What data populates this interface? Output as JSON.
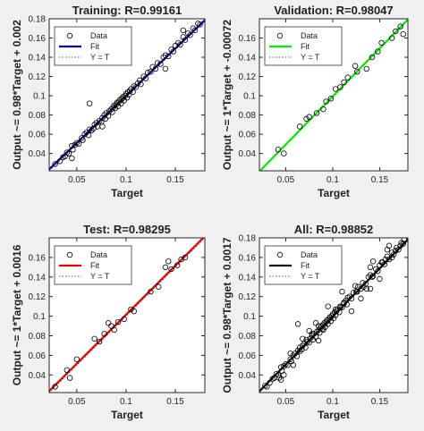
{
  "chart_data": [
    {
      "type": "scatter",
      "title": "Training: R=0.99161",
      "xlabel": "Target",
      "ylabel": "Output ~= 0.98*Target + 0.002",
      "xlim": [
        0.022,
        0.18
      ],
      "ylim": [
        0.022,
        0.18
      ],
      "xticks": [
        0.05,
        0.1,
        0.15
      ],
      "xtick_labels": [
        "0.05",
        "0.1",
        "0.15"
      ],
      "yticks": [
        0.04,
        0.06,
        0.08,
        0.1,
        0.12,
        0.14,
        0.16,
        0.18
      ],
      "ytick_labels": [
        "0.04",
        "0.06",
        "0.08",
        "0.1",
        "0.12",
        "0.14",
        "0.16",
        "0.18"
      ],
      "fit": {
        "slope": 0.98,
        "intercept": 0.002,
        "color": "#0000cc"
      },
      "legend": {
        "position": "top-left",
        "entries": [
          "Data",
          "Fit",
          "Y = T"
        ]
      },
      "grid": false,
      "points": [
        [
          0.028,
          0.029
        ],
        [
          0.033,
          0.032
        ],
        [
          0.036,
          0.036
        ],
        [
          0.038,
          0.037
        ],
        [
          0.04,
          0.041
        ],
        [
          0.042,
          0.04
        ],
        [
          0.045,
          0.048
        ],
        [
          0.046,
          0.044
        ],
        [
          0.048,
          0.049
        ],
        [
          0.05,
          0.051
        ],
        [
          0.052,
          0.05
        ],
        [
          0.055,
          0.056
        ],
        [
          0.056,
          0.054
        ],
        [
          0.058,
          0.06
        ],
        [
          0.06,
          0.062
        ],
        [
          0.062,
          0.059
        ],
        [
          0.063,
          0.065
        ],
        [
          0.065,
          0.064
        ],
        [
          0.067,
          0.066
        ],
        [
          0.068,
          0.07
        ],
        [
          0.07,
          0.072
        ],
        [
          0.071,
          0.068
        ],
        [
          0.073,
          0.074
        ],
        [
          0.075,
          0.073
        ],
        [
          0.076,
          0.077
        ],
        [
          0.078,
          0.08
        ],
        [
          0.079,
          0.076
        ],
        [
          0.08,
          0.082
        ],
        [
          0.082,
          0.079
        ],
        [
          0.083,
          0.084
        ],
        [
          0.085,
          0.086
        ],
        [
          0.086,
          0.083
        ],
        [
          0.087,
          0.088
        ],
        [
          0.088,
          0.09
        ],
        [
          0.089,
          0.087
        ],
        [
          0.09,
          0.091
        ],
        [
          0.091,
          0.093
        ],
        [
          0.092,
          0.089
        ],
        [
          0.093,
          0.094
        ],
        [
          0.094,
          0.096
        ],
        [
          0.095,
          0.092
        ],
        [
          0.096,
          0.097
        ],
        [
          0.097,
          0.099
        ],
        [
          0.098,
          0.095
        ],
        [
          0.099,
          0.1
        ],
        [
          0.1,
          0.102
        ],
        [
          0.101,
          0.098
        ],
        [
          0.102,
          0.104
        ],
        [
          0.103,
          0.101
        ],
        [
          0.104,
          0.105
        ],
        [
          0.105,
          0.107
        ],
        [
          0.107,
          0.104
        ],
        [
          0.108,
          0.11
        ],
        [
          0.11,
          0.109
        ],
        [
          0.112,
          0.113
        ],
        [
          0.114,
          0.116
        ],
        [
          0.115,
          0.112
        ],
        [
          0.118,
          0.12
        ],
        [
          0.12,
          0.118
        ],
        [
          0.122,
          0.124
        ],
        [
          0.125,
          0.125
        ],
        [
          0.127,
          0.13
        ],
        [
          0.13,
          0.128
        ],
        [
          0.132,
          0.134
        ],
        [
          0.135,
          0.133
        ],
        [
          0.138,
          0.14
        ],
        [
          0.14,
          0.142
        ],
        [
          0.143,
          0.141
        ],
        [
          0.146,
          0.148
        ],
        [
          0.148,
          0.146
        ],
        [
          0.15,
          0.152
        ],
        [
          0.153,
          0.155
        ],
        [
          0.155,
          0.153
        ],
        [
          0.158,
          0.161
        ],
        [
          0.16,
          0.158
        ],
        [
          0.163,
          0.165
        ],
        [
          0.165,
          0.163
        ],
        [
          0.168,
          0.17
        ],
        [
          0.17,
          0.168
        ],
        [
          0.173,
          0.175
        ],
        [
          0.175,
          0.174
        ],
        [
          0.063,
          0.092
        ],
        [
          0.045,
          0.035
        ],
        [
          0.076,
          0.068
        ],
        [
          0.14,
          0.128
        ],
        [
          0.158,
          0.168
        ]
      ]
    },
    {
      "type": "scatter",
      "title": "Validation: R=0.98047",
      "xlabel": "Target",
      "ylabel": "Output ~= 1*Target + -0.00072",
      "xlim": [
        0.022,
        0.18
      ],
      "ylim": [
        0.022,
        0.18
      ],
      "xticks": [
        0.05,
        0.1,
        0.15
      ],
      "xtick_labels": [
        "0.05",
        "0.1",
        "0.15"
      ],
      "yticks": [
        0.04,
        0.06,
        0.08,
        0.1,
        0.12,
        0.14,
        0.16
      ],
      "ytick_labels": [
        "0.04",
        "0.06",
        "0.08",
        "0.1",
        "0.12",
        "0.14",
        "0.16"
      ],
      "fit": {
        "slope": 1,
        "intercept": -0.00072,
        "color": "#00ee00"
      },
      "legend": {
        "position": "top-left",
        "entries": [
          "Data",
          "Fit",
          "Y = T"
        ]
      },
      "grid": false,
      "points": [
        [
          0.042,
          0.044
        ],
        [
          0.048,
          0.04
        ],
        [
          0.065,
          0.068
        ],
        [
          0.072,
          0.076
        ],
        [
          0.075,
          0.078
        ],
        [
          0.083,
          0.082
        ],
        [
          0.09,
          0.086
        ],
        [
          0.093,
          0.094
        ],
        [
          0.098,
          0.097
        ],
        [
          0.103,
          0.107
        ],
        [
          0.108,
          0.109
        ],
        [
          0.112,
          0.114
        ],
        [
          0.116,
          0.119
        ],
        [
          0.124,
          0.131
        ],
        [
          0.126,
          0.125
        ],
        [
          0.136,
          0.128
        ],
        [
          0.142,
          0.14
        ],
        [
          0.148,
          0.146
        ],
        [
          0.152,
          0.155
        ],
        [
          0.163,
          0.16
        ],
        [
          0.167,
          0.167
        ],
        [
          0.172,
          0.172
        ],
        [
          0.175,
          0.164
        ]
      ]
    },
    {
      "type": "scatter",
      "title": "Test: R=0.98295",
      "xlabel": "Target",
      "ylabel": "Output ~= 1*Target + 0.0016",
      "xlim": [
        0.022,
        0.18
      ],
      "ylim": [
        0.022,
        0.18
      ],
      "xticks": [
        0.05,
        0.1,
        0.15
      ],
      "xtick_labels": [
        "0.05",
        "0.1",
        "0.15"
      ],
      "yticks": [
        0.04,
        0.06,
        0.08,
        0.1,
        0.12,
        0.14,
        0.16
      ],
      "ytick_labels": [
        "0.04",
        "0.06",
        "0.08",
        "0.1",
        "0.12",
        "0.14",
        "0.16"
      ],
      "fit": {
        "slope": 1,
        "intercept": 0.0016,
        "color": "#ee0000"
      },
      "legend": {
        "position": "top-left",
        "entries": [
          "Data",
          "Fit",
          "Y = T"
        ]
      },
      "grid": false,
      "points": [
        [
          0.028,
          0.028
        ],
        [
          0.04,
          0.045
        ],
        [
          0.043,
          0.037
        ],
        [
          0.05,
          0.056
        ],
        [
          0.068,
          0.077
        ],
        [
          0.073,
          0.074
        ],
        [
          0.078,
          0.082
        ],
        [
          0.082,
          0.093
        ],
        [
          0.085,
          0.09
        ],
        [
          0.088,
          0.086
        ],
        [
          0.092,
          0.094
        ],
        [
          0.098,
          0.097
        ],
        [
          0.105,
          0.107
        ],
        [
          0.108,
          0.105
        ],
        [
          0.125,
          0.125
        ],
        [
          0.133,
          0.13
        ],
        [
          0.14,
          0.15
        ],
        [
          0.143,
          0.156
        ],
        [
          0.146,
          0.148
        ],
        [
          0.152,
          0.152
        ],
        [
          0.156,
          0.158
        ],
        [
          0.16,
          0.16
        ]
      ]
    },
    {
      "type": "scatter",
      "title": "All: R=0.98852",
      "xlabel": "Target",
      "ylabel": "Output ~= 0.98*Target + 0.0017",
      "xlim": [
        0.022,
        0.18
      ],
      "ylim": [
        0.022,
        0.18
      ],
      "xticks": [
        0.05,
        0.1,
        0.15
      ],
      "xtick_labels": [
        "0.05",
        "0.1",
        "0.15"
      ],
      "yticks": [
        0.04,
        0.06,
        0.08,
        0.1,
        0.12,
        0.14,
        0.16,
        0.18
      ],
      "ytick_labels": [
        "0.04",
        "0.06",
        "0.08",
        "0.1",
        "0.12",
        "0.14",
        "0.16",
        "0.18"
      ],
      "fit": {
        "slope": 0.98,
        "intercept": 0.0017,
        "color": "#111111"
      },
      "legend": {
        "position": "top-left",
        "entries": [
          "Data",
          "Fit",
          "Y = T"
        ]
      },
      "grid": false,
      "points": [
        [
          0.028,
          0.029
        ],
        [
          0.03,
          0.028
        ],
        [
          0.033,
          0.032
        ],
        [
          0.036,
          0.036
        ],
        [
          0.038,
          0.037
        ],
        [
          0.04,
          0.041
        ],
        [
          0.042,
          0.04
        ],
        [
          0.043,
          0.037
        ],
        [
          0.045,
          0.048
        ],
        [
          0.046,
          0.044
        ],
        [
          0.048,
          0.049
        ],
        [
          0.048,
          0.04
        ],
        [
          0.05,
          0.051
        ],
        [
          0.052,
          0.05
        ],
        [
          0.055,
          0.056
        ],
        [
          0.056,
          0.054
        ],
        [
          0.058,
          0.06
        ],
        [
          0.06,
          0.062
        ],
        [
          0.062,
          0.059
        ],
        [
          0.063,
          0.065
        ],
        [
          0.065,
          0.064
        ],
        [
          0.065,
          0.068
        ],
        [
          0.067,
          0.066
        ],
        [
          0.068,
          0.07
        ],
        [
          0.068,
          0.077
        ],
        [
          0.07,
          0.072
        ],
        [
          0.071,
          0.068
        ],
        [
          0.072,
          0.076
        ],
        [
          0.073,
          0.074
        ],
        [
          0.075,
          0.073
        ],
        [
          0.076,
          0.077
        ],
        [
          0.078,
          0.08
        ],
        [
          0.078,
          0.082
        ],
        [
          0.079,
          0.076
        ],
        [
          0.08,
          0.082
        ],
        [
          0.082,
          0.079
        ],
        [
          0.082,
          0.093
        ],
        [
          0.083,
          0.084
        ],
        [
          0.085,
          0.086
        ],
        [
          0.085,
          0.09
        ],
        [
          0.086,
          0.083
        ],
        [
          0.087,
          0.088
        ],
        [
          0.088,
          0.09
        ],
        [
          0.089,
          0.087
        ],
        [
          0.09,
          0.091
        ],
        [
          0.09,
          0.086
        ],
        [
          0.091,
          0.093
        ],
        [
          0.092,
          0.089
        ],
        [
          0.093,
          0.094
        ],
        [
          0.094,
          0.096
        ],
        [
          0.095,
          0.092
        ],
        [
          0.096,
          0.097
        ],
        [
          0.097,
          0.099
        ],
        [
          0.098,
          0.095
        ],
        [
          0.099,
          0.1
        ],
        [
          0.1,
          0.102
        ],
        [
          0.101,
          0.098
        ],
        [
          0.102,
          0.104
        ],
        [
          0.103,
          0.101
        ],
        [
          0.103,
          0.107
        ],
        [
          0.104,
          0.105
        ],
        [
          0.105,
          0.107
        ],
        [
          0.107,
          0.104
        ],
        [
          0.108,
          0.11
        ],
        [
          0.108,
          0.109
        ],
        [
          0.11,
          0.109
        ],
        [
          0.112,
          0.113
        ],
        [
          0.112,
          0.114
        ],
        [
          0.114,
          0.116
        ],
        [
          0.115,
          0.112
        ],
        [
          0.116,
          0.119
        ],
        [
          0.118,
          0.12
        ],
        [
          0.12,
          0.118
        ],
        [
          0.122,
          0.124
        ],
        [
          0.124,
          0.131
        ],
        [
          0.125,
          0.125
        ],
        [
          0.126,
          0.125
        ],
        [
          0.127,
          0.13
        ],
        [
          0.13,
          0.128
        ],
        [
          0.132,
          0.134
        ],
        [
          0.133,
          0.13
        ],
        [
          0.135,
          0.133
        ],
        [
          0.136,
          0.128
        ],
        [
          0.138,
          0.14
        ],
        [
          0.14,
          0.142
        ],
        [
          0.14,
          0.15
        ],
        [
          0.142,
          0.14
        ],
        [
          0.143,
          0.141
        ],
        [
          0.143,
          0.156
        ],
        [
          0.146,
          0.148
        ],
        [
          0.148,
          0.146
        ],
        [
          0.15,
          0.152
        ],
        [
          0.152,
          0.155
        ],
        [
          0.153,
          0.155
        ],
        [
          0.155,
          0.153
        ],
        [
          0.156,
          0.158
        ],
        [
          0.158,
          0.161
        ],
        [
          0.16,
          0.158
        ],
        [
          0.163,
          0.165
        ],
        [
          0.163,
          0.16
        ],
        [
          0.165,
          0.163
        ],
        [
          0.167,
          0.167
        ],
        [
          0.168,
          0.17
        ],
        [
          0.17,
          0.168
        ],
        [
          0.172,
          0.172
        ],
        [
          0.173,
          0.175
        ],
        [
          0.175,
          0.174
        ],
        [
          0.176,
          0.178
        ],
        [
          0.063,
          0.092
        ],
        [
          0.045,
          0.035
        ],
        [
          0.14,
          0.128
        ],
        [
          0.158,
          0.168
        ],
        [
          0.12,
          0.105
        ],
        [
          0.095,
          0.11
        ],
        [
          0.11,
          0.125
        ],
        [
          0.13,
          0.118
        ],
        [
          0.075,
          0.085
        ],
        [
          0.085,
          0.075
        ],
        [
          0.15,
          0.138
        ],
        [
          0.16,
          0.172
        ],
        [
          0.055,
          0.062
        ],
        [
          0.058,
          0.05
        ]
      ]
    }
  ]
}
